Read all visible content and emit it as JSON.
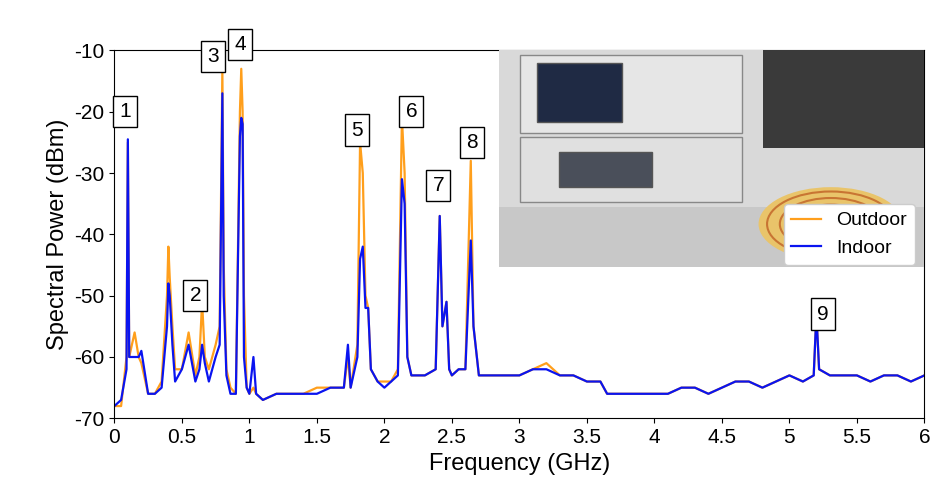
{
  "chart_data": {
    "type": "line",
    "x_label": "Frequency (GHz)",
    "y_label": "Spectral Power (dBm)",
    "x": [
      0,
      0.05,
      0.09,
      0.1,
      0.11,
      0.15,
      0.18,
      0.2,
      0.25,
      0.3,
      0.35,
      0.39,
      0.4,
      0.41,
      0.43,
      0.45,
      0.5,
      0.55,
      0.6,
      0.63,
      0.65,
      0.67,
      0.7,
      0.75,
      0.78,
      0.8,
      0.81,
      0.83,
      0.86,
      0.9,
      0.93,
      0.94,
      0.95,
      0.96,
      0.98,
      1.0,
      1.03,
      1.05,
      1.1,
      1.2,
      1.3,
      1.4,
      1.5,
      1.6,
      1.7,
      1.73,
      1.75,
      1.8,
      1.82,
      1.84,
      1.86,
      1.88,
      1.9,
      1.95,
      2.0,
      2.05,
      2.1,
      2.13,
      2.15,
      2.17,
      2.2,
      2.3,
      2.38,
      2.41,
      2.43,
      2.46,
      2.48,
      2.5,
      2.55,
      2.6,
      2.64,
      2.66,
      2.7,
      2.8,
      2.9,
      3.0,
      3.1,
      3.2,
      3.3,
      3.4,
      3.5,
      3.6,
      3.65,
      3.7,
      3.8,
      3.9,
      4.0,
      4.1,
      4.2,
      4.3,
      4.4,
      4.5,
      4.6,
      4.7,
      4.8,
      4.9,
      5.0,
      5.1,
      5.18,
      5.2,
      5.22,
      5.3,
      5.4,
      5.5,
      5.6,
      5.7,
      5.8,
      5.9,
      6.0
    ],
    "series": [
      {
        "name": "Outdoor",
        "color": "#ff9f1c",
        "values": [
          -68,
          -68,
          -60,
          -25,
          -60,
          -56,
          -60,
          -61,
          -66,
          -66,
          -64,
          -50,
          -42,
          -47,
          -55,
          -62,
          -62,
          -56,
          -63,
          -60,
          -51,
          -60,
          -62,
          -58,
          -55,
          -13,
          -45,
          -62,
          -65,
          -66,
          -20,
          -13,
          -20,
          -50,
          -65,
          -66,
          -65,
          -66,
          -67,
          -66,
          -66,
          -66,
          -65,
          -65,
          -65,
          -60,
          -65,
          -58,
          -25,
          -30,
          -50,
          -52,
          -62,
          -64,
          -64,
          -64,
          -62,
          -21,
          -30,
          -60,
          -63,
          -63,
          -62,
          -37,
          -55,
          -51,
          -62,
          -63,
          -62,
          -62,
          -28,
          -55,
          -63,
          -63,
          -63,
          -63,
          -62,
          -61,
          -63,
          -63,
          -64,
          -64,
          -66,
          -66,
          -66,
          -66,
          -66,
          -66,
          -65,
          -65,
          -66,
          -65,
          -64,
          -64,
          -65,
          -64,
          -63,
          -64,
          -63,
          -53,
          -62,
          -63,
          -63,
          -63,
          -64,
          -63,
          -63,
          -64,
          -63
        ]
      },
      {
        "name": "Indoor",
        "color": "#0a14f0",
        "values": [
          -68,
          -67,
          -62,
          -24.5,
          -60,
          -60,
          -60,
          -59,
          -66,
          -66,
          -65,
          -55,
          -48,
          -50,
          -58,
          -64,
          -62,
          -58,
          -64,
          -62,
          -58,
          -61,
          -64,
          -60,
          -58,
          -17,
          -50,
          -63,
          -66,
          -66,
          -24,
          -21,
          -22,
          -60,
          -65,
          -66,
          -60,
          -66,
          -67,
          -66,
          -66,
          -66,
          -66,
          -65,
          -65,
          -58,
          -65,
          -60,
          -44,
          -42,
          -52,
          -52,
          -62,
          -64,
          -65,
          -64,
          -63,
          -31,
          -35,
          -60,
          -63,
          -63,
          -62,
          -37,
          -55,
          -51,
          -62,
          -63,
          -62,
          -62,
          -41,
          -55,
          -63,
          -63,
          -63,
          -63,
          -62,
          -62,
          -63,
          -63,
          -64,
          -64,
          -66,
          -66,
          -66,
          -66,
          -66,
          -66,
          -65,
          -65,
          -66,
          -65,
          -64,
          -64,
          -65,
          -64,
          -63,
          -64,
          -63,
          -53,
          -62,
          -63,
          -63,
          -63,
          -64,
          -63,
          -63,
          -64,
          -63
        ]
      }
    ],
    "xlim": [
      0,
      6
    ],
    "xticks": [
      0,
      0.5,
      1,
      1.5,
      2,
      2.5,
      3,
      3.5,
      4,
      4.5,
      5,
      5.5,
      6
    ],
    "ylim": [
      -70,
      -10
    ],
    "yticks": [
      -70,
      -60,
      -50,
      -40,
      -30,
      -20,
      -10
    ],
    "grid": false,
    "legend": "center right",
    "annotations": [
      {
        "text": "1",
        "x": 0.08,
        "y": -20
      },
      {
        "text": "2",
        "x": 0.6,
        "y": -50
      },
      {
        "text": "3",
        "x": 0.73,
        "y": -11
      },
      {
        "text": "4",
        "x": 0.93,
        "y": -9
      },
      {
        "text": "5",
        "x": 1.8,
        "y": -23
      },
      {
        "text": "6",
        "x": 2.2,
        "y": -20
      },
      {
        "text": "7",
        "x": 2.4,
        "y": -32
      },
      {
        "text": "8",
        "x": 2.65,
        "y": -25
      },
      {
        "text": "9",
        "x": 5.25,
        "y": -53
      }
    ]
  }
}
